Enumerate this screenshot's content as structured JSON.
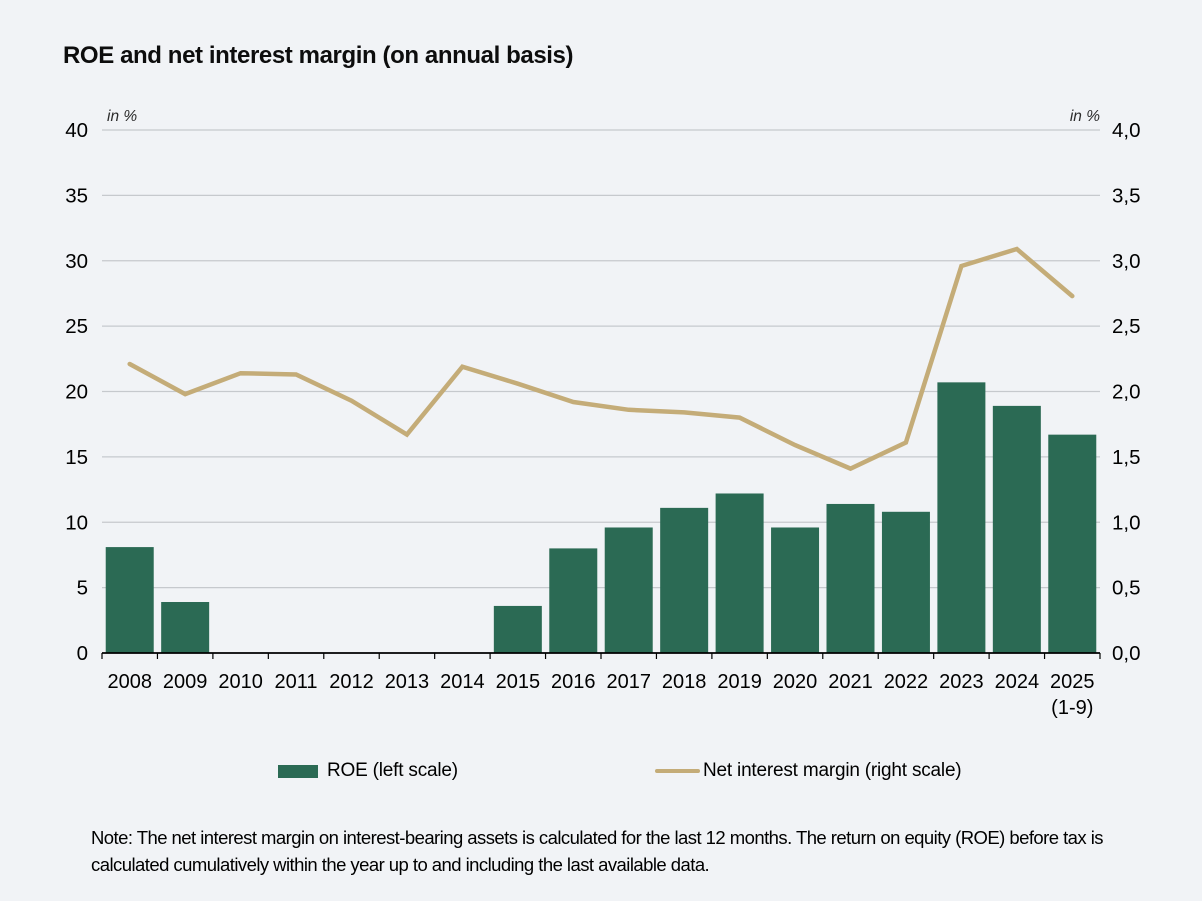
{
  "title": "ROE and net interest margin (on annual basis)",
  "chart_data": {
    "type": "bar+line",
    "categories": [
      "2008",
      "2009",
      "2010",
      "2011",
      "2012",
      "2013",
      "2014",
      "2015",
      "2016",
      "2017",
      "2018",
      "2019",
      "2020",
      "2021",
      "2022",
      "2023",
      "2024",
      "2025"
    ],
    "last_category_sublabel": "(1-9)",
    "series": [
      {
        "name": "ROE (left scale)",
        "type": "bar",
        "axis": "left",
        "values": [
          8.1,
          3.9,
          0,
          0,
          0,
          0,
          0,
          3.6,
          8.0,
          9.6,
          11.1,
          12.2,
          9.6,
          11.4,
          10.8,
          20.7,
          18.9,
          16.7
        ]
      },
      {
        "name": "Net interest margin (right scale)",
        "type": "line",
        "axis": "right",
        "values": [
          2.21,
          1.98,
          2.14,
          2.13,
          1.93,
          1.67,
          2.19,
          2.06,
          1.92,
          1.86,
          1.84,
          1.8,
          1.59,
          1.41,
          1.61,
          2.96,
          3.09,
          2.73
        ]
      }
    ],
    "left_axis": {
      "unit": "in %",
      "min": 0,
      "max": 40,
      "step": 5,
      "tick_labels": [
        "0",
        "5",
        "10",
        "15",
        "20",
        "25",
        "30",
        "35",
        "40"
      ]
    },
    "right_axis": {
      "unit": "in %",
      "min": 0,
      "max": 4,
      "step": 0.5,
      "tick_labels": [
        "0,0",
        "0,5",
        "1,0",
        "1,5",
        "2,0",
        "2,5",
        "3,0",
        "3,5",
        "4,0"
      ]
    },
    "grid": true,
    "legend_position": "bottom"
  },
  "legend": {
    "roe_label": "ROE (left scale)",
    "nim_label": "Net interest margin (right scale)"
  },
  "note": "Note: The net interest margin on interest-bearing assets is calculated for the last 12 months. The return on equity (ROE) before tax is calculated cumulatively within the year up to and including the last available data.",
  "colors": {
    "bar": "#2b6a54",
    "line": "#c4ac78",
    "background": "#f1f3f6",
    "gridline": "#c6c9cd",
    "axis": "#000000",
    "text": "#000000"
  }
}
